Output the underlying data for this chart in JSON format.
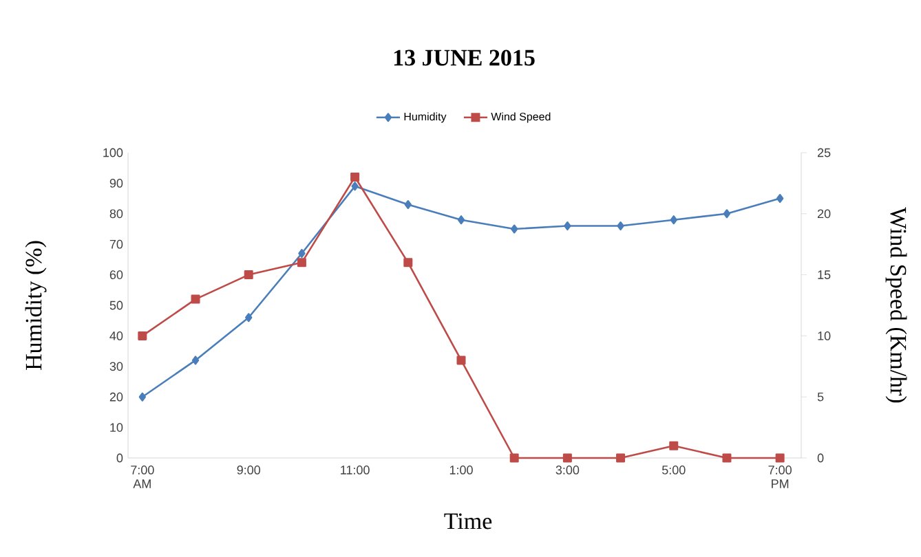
{
  "chart_data": {
    "type": "line",
    "title": "13 JUNE 2015",
    "xlabel": "Time",
    "ylabel": "Humidity (%)",
    "y2label": "Wind Speed (Km/hr)",
    "categories": [
      "7:00 AM",
      null,
      "9:00",
      null,
      "11:00",
      null,
      "1:00",
      null,
      "3:00",
      null,
      "5:00",
      null,
      "7:00 PM"
    ],
    "series": [
      {
        "name": "Humidity",
        "color": "#4a7ebb",
        "marker": "diamond",
        "values": [
          20,
          32,
          46,
          67,
          89,
          83,
          78,
          75,
          76,
          76,
          78,
          80,
          85
        ]
      },
      {
        "name": "Wind Speed",
        "color": "#be4b48",
        "marker": "square",
        "axis": "y2",
        "values": [
          10,
          13,
          15,
          16,
          23,
          16,
          8,
          0,
          0,
          0,
          1,
          0,
          0
        ]
      }
    ],
    "ylim": [
      0,
      100
    ],
    "yticks": [
      0,
      10,
      20,
      30,
      40,
      50,
      60,
      70,
      80,
      90,
      100
    ],
    "y2lim": [
      0,
      25
    ],
    "y2ticks": [
      0,
      5,
      10,
      15,
      20,
      25
    ],
    "legend": "top"
  }
}
